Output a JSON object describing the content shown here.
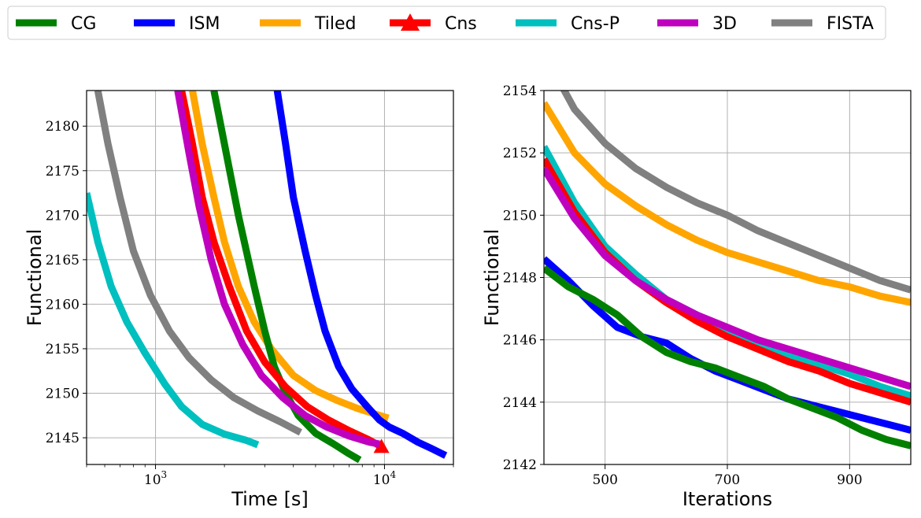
{
  "legend": [
    {
      "name": "CG",
      "color": "#008000",
      "marker": "none"
    },
    {
      "name": "ISM",
      "color": "#0000ff",
      "marker": "none"
    },
    {
      "name": "Tiled",
      "color": "#ffa500",
      "marker": "none"
    },
    {
      "name": "Cns",
      "color": "#ff0000",
      "marker": "triangle"
    },
    {
      "name": "Cns-P",
      "color": "#00bfbf",
      "marker": "none"
    },
    {
      "name": "3D",
      "color": "#bf00bf",
      "marker": "none"
    },
    {
      "name": "FISTA",
      "color": "#808080",
      "marker": "none"
    }
  ],
  "chart_data": [
    {
      "type": "line",
      "xlabel": "Time [s]",
      "ylabel": "Functional",
      "xscale": "log",
      "xlim": [
        500,
        20000
      ],
      "ylim": [
        2142,
        2184
      ],
      "xticks": [
        {
          "value": 1000,
          "label": "10",
          "exp": "3"
        },
        {
          "value": 10000,
          "label": "10",
          "exp": "4"
        }
      ],
      "yticks": [
        2145,
        2150,
        2155,
        2160,
        2165,
        2170,
        2175,
        2180
      ],
      "grid": true,
      "series": [
        {
          "name": "CG",
          "x": [
            1800,
            2000,
            2300,
            2700,
            3000,
            3300,
            3700,
            4200,
            5000,
            6000,
            7000,
            7800
          ],
          "y": [
            2184,
            2178,
            2170,
            2162,
            2157,
            2153,
            2150,
            2147.5,
            2145.5,
            2144.3,
            2143.2,
            2142.5
          ]
        },
        {
          "name": "ISM",
          "x": [
            3400,
            3700,
            4000,
            4500,
            5000,
            5500,
            6300,
            7200,
            8400,
            9500,
            10500,
            12000,
            14000,
            16000,
            18500
          ],
          "y": [
            2184,
            2178,
            2172,
            2166,
            2161,
            2157,
            2153,
            2150.5,
            2148.5,
            2147,
            2146.2,
            2145.5,
            2144.5,
            2143.8,
            2143
          ]
        },
        {
          "name": "Tiled",
          "x": [
            1450,
            1600,
            1800,
            2000,
            2300,
            2700,
            3200,
            4000,
            5000,
            6200,
            7600,
            9000,
            10400
          ],
          "y": [
            2184,
            2178,
            2172,
            2167,
            2162,
            2158,
            2155,
            2152,
            2150.3,
            2149.2,
            2148.3,
            2147.7,
            2147.2
          ]
        },
        {
          "name": "Cns",
          "x": [
            1300,
            1450,
            1600,
            1800,
            2100,
            2500,
            3000,
            3700,
            4600,
            5700,
            7000,
            8500,
            9700
          ],
          "y": [
            2184,
            2178,
            2172,
            2167,
            2162,
            2157,
            2153.5,
            2150.7,
            2148.5,
            2147,
            2145.8,
            2144.8,
            2144
          ]
        },
        {
          "name": "Cns-P",
          "x": [
            500,
            560,
            640,
            750,
            900,
            1100,
            1300,
            1600,
            2000,
            2500,
            2800
          ],
          "y": [
            2172.5,
            2167,
            2162,
            2158,
            2154.5,
            2151,
            2148.5,
            2146.5,
            2145.4,
            2144.7,
            2144.2
          ]
        },
        {
          "name": "3D",
          "x": [
            1250,
            1400,
            1550,
            1750,
            2000,
            2400,
            2900,
            3600,
            4500,
            5600,
            7000,
            8600,
            9500
          ],
          "y": [
            2184,
            2177,
            2171,
            2165,
            2160,
            2155.5,
            2152,
            2149.5,
            2147.5,
            2146.2,
            2145.2,
            2144.5,
            2144.3
          ]
        },
        {
          "name": "FISTA",
          "x": [
            560,
            620,
            700,
            800,
            950,
            1150,
            1400,
            1750,
            2200,
            2800,
            3500,
            4300
          ],
          "y": [
            2184,
            2178,
            2172,
            2166,
            2161,
            2157,
            2154,
            2151.5,
            2149.5,
            2148,
            2146.8,
            2145.6
          ]
        }
      ]
    },
    {
      "type": "line",
      "xlabel": "Iterations",
      "ylabel": "Functional",
      "xlim": [
        400,
        1000
      ],
      "ylim": [
        2142,
        2154
      ],
      "xticks": [
        500,
        700,
        900
      ],
      "yticks": [
        2142,
        2144,
        2146,
        2148,
        2150,
        2152,
        2154
      ],
      "grid": true,
      "series": [
        {
          "name": "CG",
          "x": [
            400,
            440,
            480,
            520,
            560,
            600,
            640,
            680,
            720,
            760,
            800,
            840,
            880,
            920,
            960,
            1000
          ],
          "y": [
            2148.3,
            2147.7,
            2147.3,
            2146.8,
            2146.1,
            2145.6,
            2145.3,
            2145.1,
            2144.8,
            2144.5,
            2144.1,
            2143.8,
            2143.5,
            2143.1,
            2142.8,
            2142.6
          ]
        },
        {
          "name": "ISM",
          "x": [
            400,
            440,
            480,
            520,
            560,
            600,
            640,
            680,
            720,
            760,
            800,
            840,
            880,
            920,
            960,
            1000
          ],
          "y": [
            2148.6,
            2147.9,
            2147.1,
            2146.4,
            2146.1,
            2145.9,
            2145.4,
            2145,
            2144.7,
            2144.4,
            2144.1,
            2143.9,
            2143.7,
            2143.5,
            2143.3,
            2143.1
          ]
        },
        {
          "name": "Tiled",
          "x": [
            400,
            450,
            500,
            550,
            600,
            650,
            700,
            750,
            800,
            850,
            900,
            950,
            1000
          ],
          "y": [
            2153.6,
            2152,
            2151,
            2150.3,
            2149.7,
            2149.2,
            2148.8,
            2148.5,
            2148.2,
            2147.9,
            2147.7,
            2147.4,
            2147.2
          ]
        },
        {
          "name": "Cns",
          "x": [
            400,
            450,
            500,
            550,
            600,
            650,
            700,
            750,
            800,
            850,
            900,
            950,
            1000
          ],
          "y": [
            2151.8,
            2150.1,
            2148.8,
            2147.9,
            2147.2,
            2146.6,
            2146.1,
            2145.7,
            2145.3,
            2145,
            2144.6,
            2144.3,
            2144
          ]
        },
        {
          "name": "Cns-P",
          "x": [
            400,
            450,
            500,
            550,
            600,
            650,
            700,
            750,
            800,
            850,
            900,
            950,
            1000
          ],
          "y": [
            2152.2,
            2150.4,
            2149,
            2148.1,
            2147.3,
            2146.8,
            2146.3,
            2145.9,
            2145.5,
            2145.2,
            2144.9,
            2144.5,
            2144.2
          ]
        },
        {
          "name": "3D",
          "x": [
            400,
            450,
            500,
            550,
            600,
            650,
            700,
            750,
            800,
            850,
            900,
            950,
            1000
          ],
          "y": [
            2151.5,
            2149.9,
            2148.7,
            2147.9,
            2147.3,
            2146.8,
            2146.4,
            2146,
            2145.7,
            2145.4,
            2145.1,
            2144.8,
            2144.5
          ]
        },
        {
          "name": "FISTA",
          "x": [
            400,
            450,
            500,
            550,
            600,
            650,
            700,
            750,
            800,
            850,
            900,
            950,
            1000
          ],
          "y": [
            2155.2,
            2153.4,
            2152.3,
            2151.5,
            2150.9,
            2150.4,
            2150,
            2149.5,
            2149.1,
            2148.7,
            2148.3,
            2147.9,
            2147.6
          ]
        }
      ]
    }
  ]
}
